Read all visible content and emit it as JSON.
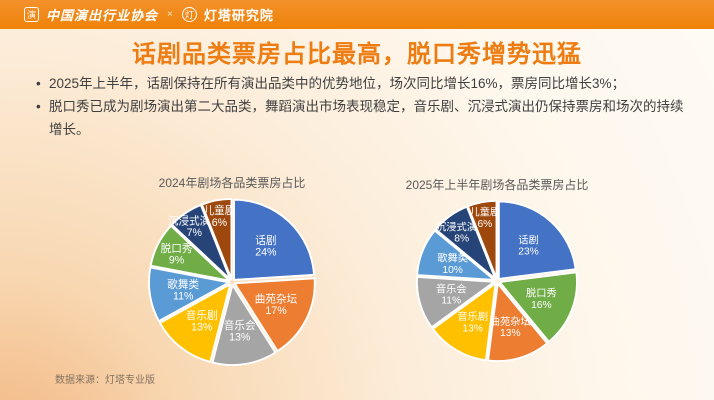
{
  "header": {
    "seal_icon": {
      "name": "association-seal-icon",
      "glyph": "演"
    },
    "logo_left": "中国演出行业协会",
    "logo_separator": "×",
    "badge_icon": {
      "name": "beacon-badge-icon",
      "glyph": "灯"
    },
    "logo_right": "灯塔研究院"
  },
  "title": "话剧品类票房占比最高，脱口秀增势迅猛",
  "bullets": {
    "marker": "•",
    "items": [
      "2025年上半年，话剧保持在所有演出品类中的优势地位，场次同比增长16%，票房同比增长3%；",
      "脱口秀已成为剧场演出第二大品类，舞蹈演出市场表现稳定，音乐剧、沉浸式演出仍保持票房和场次的持续增长。"
    ]
  },
  "footer": {
    "source": "数据来源：灯塔专业版"
  },
  "colors": {
    "topbar": "#EF8208",
    "title_accent": "#ED7D12",
    "body_text": "#3F3F3F",
    "chart_title": "#595959",
    "slice_label": "#FFFFFF"
  },
  "chart_data": [
    {
      "type": "pie",
      "title": "2024年剧场各品类票房占比",
      "categories": [
        "话剧",
        "曲苑杂坛",
        "音乐会",
        "音乐剧",
        "歌舞类",
        "脱口秀",
        "沉浸式演出",
        "儿童剧"
      ],
      "values": [
        24,
        17,
        13,
        13,
        11,
        9,
        7,
        6
      ],
      "unit": "%",
      "colors": [
        "#4472C4",
        "#ED7D31",
        "#A5A5A5",
        "#FFC000",
        "#5B9BD5",
        "#70AD47",
        "#264478",
        "#9E480E"
      ],
      "start_angle": 0,
      "direction": "clockwise",
      "labels": "inside",
      "legend": "none"
    },
    {
      "type": "pie",
      "title": "2025年上半年剧场各品类票房占比",
      "categories": [
        "话剧",
        "脱口秀",
        "曲苑杂坛",
        "音乐剧",
        "音乐会",
        "歌舞类",
        "沉浸式演出",
        "儿童剧"
      ],
      "values": [
        23,
        16,
        13,
        13,
        11,
        10,
        8,
        6
      ],
      "unit": "%",
      "colors": [
        "#4472C4",
        "#70AD47",
        "#ED7D31",
        "#FFC000",
        "#A5A5A5",
        "#5B9BD5",
        "#264478",
        "#9E480E"
      ],
      "start_angle": 0,
      "direction": "clockwise",
      "labels": "inside",
      "legend": "none"
    }
  ]
}
